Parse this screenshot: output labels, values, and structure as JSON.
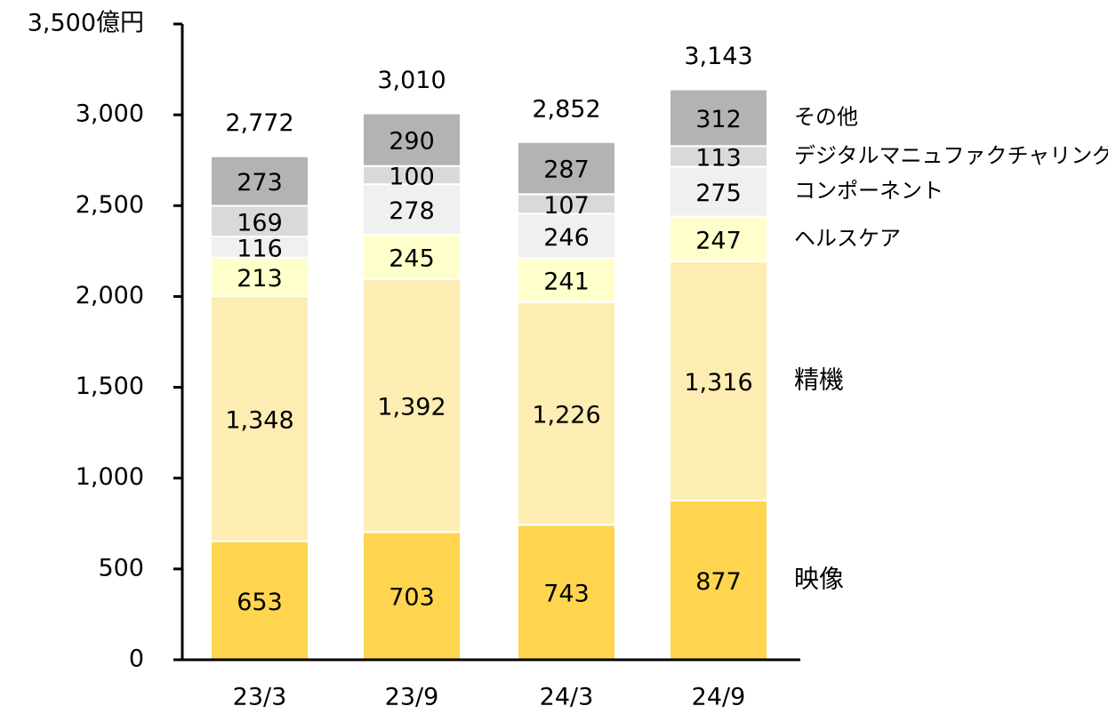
{
  "chart_data": {
    "type": "stacked_bar",
    "categories": [
      "23/3",
      "23/9",
      "24/3",
      "24/9"
    ],
    "series": [
      {
        "name": "映像",
        "color": "#ffd54f",
        "values": [
          653,
          703,
          743,
          877
        ]
      },
      {
        "name": "精機",
        "color": "#fdedb3",
        "values": [
          1348,
          1392,
          1226,
          1316
        ],
        "value_labels": [
          "1,348",
          "1,392",
          "1,226",
          "1,316"
        ]
      },
      {
        "name": "ヘルスケア",
        "color": "#ffffcc",
        "values": [
          213,
          245,
          241,
          247
        ]
      },
      {
        "name": "コンポーネント",
        "color": "#f0f0f0",
        "values": [
          116,
          278,
          246,
          275
        ]
      },
      {
        "name": "デジタルマニュファクチャリング",
        "color": "#d9d9d9",
        "values": [
          169,
          100,
          107,
          113
        ]
      },
      {
        "name": "その他",
        "color": "#b3b3b3",
        "values": [
          273,
          290,
          287,
          312
        ]
      }
    ],
    "totals": {
      "values": [
        2772,
        3010,
        2852,
        3143
      ],
      "value_labels": [
        "2,772",
        "3,010",
        "2,852",
        "3,143"
      ]
    },
    "ylim": [
      0,
      3500
    ],
    "yticks": [
      0,
      500,
      {
        "value": 1000,
        "label": "1,000"
      },
      {
        "value": 1500,
        "label": "1,500"
      },
      {
        "value": 2000,
        "label": "2,000"
      },
      {
        "value": 2500,
        "label": "2,500"
      },
      {
        "value": 3000,
        "label": "3,000"
      },
      {
        "value": 3500,
        "label": "3,500億円"
      }
    ]
  }
}
